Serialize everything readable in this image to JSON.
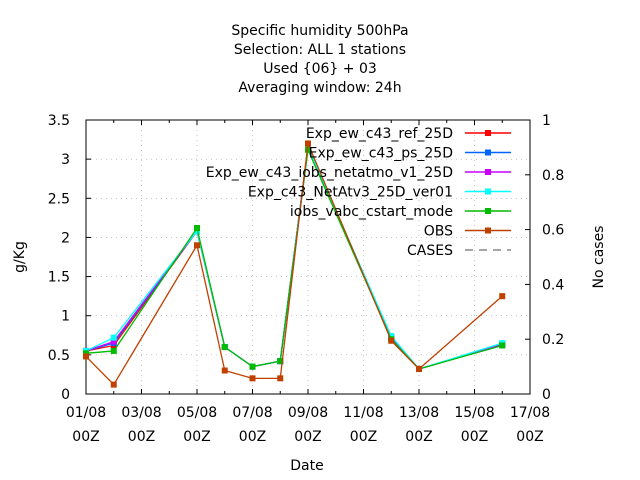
{
  "chart_data": {
    "type": "line",
    "title_lines": [
      "Specific humidity 500hPa",
      "Selection: ALL      1 stations",
      "Used {06} + 03",
      "Averaging window: 24h"
    ],
    "xlabel": "Date",
    "ylabel": "g/Kg",
    "y2label": "No cases",
    "xlim": [
      0,
      16
    ],
    "ylim": [
      0,
      3.5
    ],
    "y2lim": [
      0,
      1
    ],
    "x_ticks": [
      {
        "x": 0,
        "date": "01/08",
        "hour": "00Z"
      },
      {
        "x": 2,
        "date": "03/08",
        "hour": "00Z"
      },
      {
        "x": 4,
        "date": "05/08",
        "hour": "00Z"
      },
      {
        "x": 6,
        "date": "07/08",
        "hour": "00Z"
      },
      {
        "x": 8,
        "date": "09/08",
        "hour": "00Z"
      },
      {
        "x": 10,
        "date": "11/08",
        "hour": "00Z"
      },
      {
        "x": 12,
        "date": "13/08",
        "hour": "00Z"
      },
      {
        "x": 14,
        "date": "15/08",
        "hour": "00Z"
      },
      {
        "x": 16,
        "date": "17/08",
        "hour": "00Z"
      }
    ],
    "y_ticks": [
      "0",
      "0.5",
      "1",
      "1.5",
      "2",
      "2.5",
      "3",
      "3.5"
    ],
    "y2_ticks": [
      "0",
      "0.2",
      "0.4",
      "0.6",
      "0.8",
      "1"
    ],
    "grid": true,
    "legend_position": "top-right",
    "series": [
      {
        "name": "Exp_ew_c43_ref_25D",
        "color": "#ff0000",
        "x": [
          0,
          1,
          4,
          5,
          6,
          7,
          8,
          11,
          12,
          15
        ],
        "y": [
          0.55,
          0.62,
          2.08,
          0.6,
          0.35,
          0.42,
          3.15,
          0.72,
          0.32,
          0.63
        ]
      },
      {
        "name": "Exp_ew_c43_ps_25D",
        "color": "#0066ff",
        "x": [
          0,
          1,
          4,
          5,
          6,
          7,
          8,
          11,
          12,
          15
        ],
        "y": [
          0.55,
          0.65,
          2.08,
          0.6,
          0.35,
          0.42,
          3.15,
          0.72,
          0.32,
          0.63
        ]
      },
      {
        "name": "Exp_ew_c43_iobs_netatmo_v1_25D",
        "color": "#cc00ff",
        "x": [
          0,
          1,
          4,
          5,
          6,
          7,
          8,
          11,
          12,
          15
        ],
        "y": [
          0.55,
          0.67,
          2.08,
          0.6,
          0.35,
          0.42,
          3.15,
          0.72,
          0.32,
          0.63
        ]
      },
      {
        "name": "Exp_c43_NetAtv3_25D_ver01",
        "color": "#00ffff",
        "x": [
          0,
          1,
          4,
          5,
          6,
          7,
          8,
          11,
          12,
          15
        ],
        "y": [
          0.55,
          0.72,
          2.08,
          0.6,
          0.35,
          0.42,
          3.15,
          0.74,
          0.32,
          0.65
        ]
      },
      {
        "name": "iobs_vabc_cstart_mode",
        "color": "#00bb00",
        "x": [
          0,
          1,
          4,
          5,
          6,
          7,
          8,
          11,
          12,
          15
        ],
        "y": [
          0.52,
          0.55,
          2.12,
          0.6,
          0.35,
          0.42,
          3.12,
          0.7,
          0.32,
          0.62
        ]
      },
      {
        "name": "OBS",
        "color": "#c04000",
        "x": [
          0,
          1,
          4,
          5,
          6,
          7,
          8,
          11,
          12,
          15
        ],
        "y": [
          0.48,
          0.12,
          1.9,
          0.3,
          0.2,
          0.2,
          3.2,
          0.68,
          0.32,
          1.25
        ]
      },
      {
        "name": "CASES",
        "color": "#888888",
        "dashed": true,
        "x": [],
        "y": []
      }
    ]
  }
}
